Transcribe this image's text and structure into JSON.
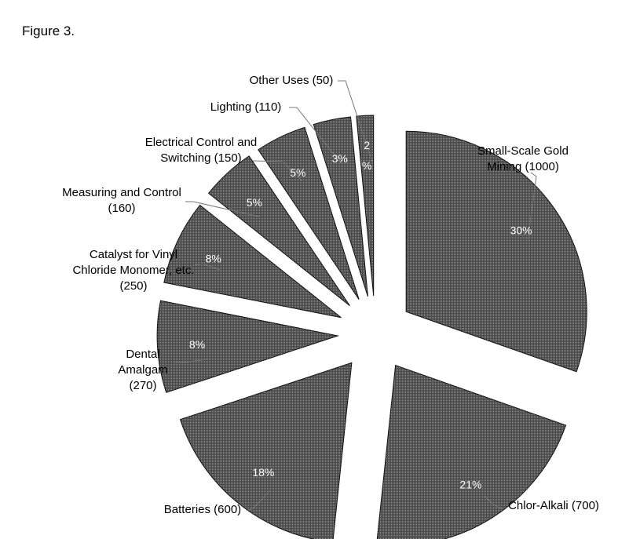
{
  "figure_label": "Figure 3.",
  "chart_data": {
    "type": "pie",
    "title": "",
    "exploded": true,
    "fill_color": "#555555",
    "fill_pattern": "dotted",
    "slices": [
      {
        "label_lines": [
          "Small-Scale Gold",
          "Mining (1000)"
        ],
        "value": 1000,
        "percent_label": "30%"
      },
      {
        "label_lines": [
          "Chlor-Alkali (700)"
        ],
        "value": 700,
        "percent_label": "21%"
      },
      {
        "label_lines": [
          "Batteries (600)"
        ],
        "value": 600,
        "percent_label": "18%"
      },
      {
        "label_lines": [
          "Dental",
          "Amalgam",
          "(270)"
        ],
        "value": 270,
        "percent_label": "8%"
      },
      {
        "label_lines": [
          "Catalyst for Vinyl",
          "Chloride Monomer, etc.",
          "(250)"
        ],
        "value": 250,
        "percent_label": "8%"
      },
      {
        "label_lines": [
          "Measuring and Control",
          "(160)"
        ],
        "value": 160,
        "percent_label": "5%"
      },
      {
        "label_lines": [
          "Electrical Control and",
          "Switching (150)"
        ],
        "value": 150,
        "percent_label": "5%"
      },
      {
        "label_lines": [
          "Lighting (110)"
        ],
        "value": 110,
        "percent_label": "3%"
      },
      {
        "label_lines": [
          "Other Uses (50)"
        ],
        "value": 50,
        "percent_label": "2%",
        "percent_label_lines": [
          "2",
          "%"
        ]
      }
    ]
  }
}
